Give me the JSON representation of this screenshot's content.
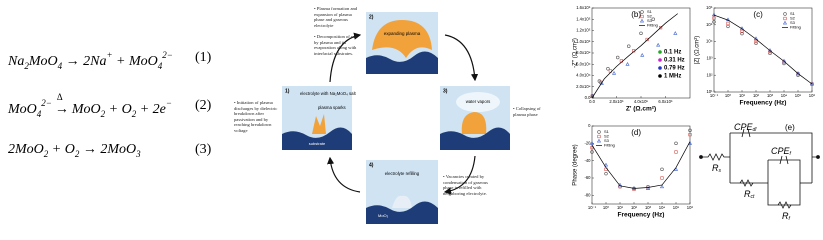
{
  "equations": [
    {
      "parts": [
        {
          "text": "Na",
          "pos": "base"
        },
        {
          "text": "2",
          "pos": "sub"
        },
        {
          "text": "MoO",
          "pos": "base"
        },
        {
          "text": "4",
          "pos": "sub"
        },
        {
          "text": " → 2Na",
          "pos": "base"
        },
        {
          "text": "+",
          "pos": "sup"
        },
        {
          "text": " + MoO",
          "pos": "base"
        },
        {
          "text": "4",
          "pos": "sub"
        },
        {
          "text": "2−",
          "pos": "sup"
        }
      ],
      "number": "(1)"
    },
    {
      "parts": [
        {
          "text": "MoO",
          "pos": "base"
        },
        {
          "text": "4",
          "pos": "sub"
        },
        {
          "text": "2−",
          "pos": "sup"
        },
        {
          "text": "→",
          "pos": "arrow",
          "above": "Δ"
        },
        {
          "text": "MoO",
          "pos": "base"
        },
        {
          "text": "2",
          "pos": "sub"
        },
        {
          "text": " + O",
          "pos": "base"
        },
        {
          "text": "2",
          "pos": "sub"
        },
        {
          "text": " + 2e",
          "pos": "base"
        },
        {
          "text": "−",
          "pos": "sup"
        }
      ],
      "number": "(2)"
    },
    {
      "parts": [
        {
          "text": "2MoO",
          "pos": "base"
        },
        {
          "text": "2",
          "pos": "sub"
        },
        {
          "text": " + O",
          "pos": "base"
        },
        {
          "text": "2",
          "pos": "sub"
        },
        {
          "text": " → 2MoO",
          "pos": "base"
        },
        {
          "text": "3",
          "pos": "sub"
        }
      ],
      "number": "(3)"
    }
  ],
  "diagram": {
    "panels": [
      {
        "number": "1)",
        "labels": [
          "electrolyte with Na₂MoO₄ salt",
          "plasma sparks",
          "substrate"
        ],
        "note": "Initiation of plasma discharges by dielectric breakdown after passivation and by reaching breakdown voltage"
      },
      {
        "number": "2)",
        "labels": [
          "expanding plasma"
        ],
        "note": "Plasma formation and expansion of plasma phase and gaseous electrolyte",
        "note2": "Decomposition of salt by plasma and its evaporation along with interfacial substrates."
      },
      {
        "number": "3)",
        "labels": [
          "water vapors"
        ],
        "note": "Collapsing of plasma phase"
      },
      {
        "number": "4)",
        "labels": [
          "electrolyte refilling",
          "MoO₃"
        ],
        "note": "Vacancies created by condensation of gaseous phase is refilled with neighboring electrolyte."
      }
    ]
  },
  "chart_data": [
    {
      "type": "scatter",
      "label": "(b)",
      "xlabel": "Z' (Ω.cm²)",
      "ylabel": "-Z'' (Ω.cm²)",
      "xlim": [
        0,
        800000
      ],
      "ylim": [
        0,
        160000
      ],
      "xticks": [
        {
          "value": 0,
          "label": "0.0"
        },
        {
          "value": 200000,
          "label": "2.0x10⁵"
        },
        {
          "value": 400000,
          "label": "4.0x10⁵"
        },
        {
          "value": 600000,
          "label": "6.0x10⁵"
        }
      ],
      "yticks": [
        {
          "value": 0,
          "label": "0.0"
        },
        {
          "value": 20000,
          "label": "2.0x10⁴"
        },
        {
          "value": 40000,
          "label": "4.0x10⁴"
        },
        {
          "value": 60000,
          "label": "6.0x10⁴"
        },
        {
          "value": 80000,
          "label": "8.0x10⁴"
        },
        {
          "value": 100000,
          "label": "1.0x10⁵"
        },
        {
          "value": 120000,
          "label": "1.2x10⁵"
        },
        {
          "value": 140000,
          "label": "1.4x10⁵"
        },
        {
          "value": 160000,
          "label": "1.6x10⁵"
        }
      ],
      "legend": "upper center",
      "series": [
        {
          "name": "S1",
          "color": "#555555",
          "mode": "markers",
          "marker": "circle",
          "x": [
            3000,
            60000,
            130000,
            210000,
            300000,
            400000,
            500000
          ],
          "values": [
            4000,
            30000,
            52000,
            72000,
            92000,
            115000,
            140000
          ]
        },
        {
          "name": "S2",
          "color": "#d9534f",
          "mode": "markers",
          "marker": "square",
          "x": [
            3000,
            70000,
            150000,
            240000,
            340000,
            450000,
            560000
          ],
          "values": [
            3500,
            28000,
            48000,
            66000,
            84000,
            104000,
            125000
          ]
        },
        {
          "name": "S3",
          "color": "#3a5fcd",
          "mode": "markers",
          "marker": "triangle",
          "x": [
            3000,
            80000,
            180000,
            290000,
            410000,
            540000,
            680000
          ],
          "values": [
            3000,
            26000,
            44000,
            60000,
            76000,
            94000,
            115000
          ]
        },
        {
          "name": "Fitting",
          "color": "#000000",
          "mode": "line",
          "x": [
            0,
            100000,
            200000,
            300000,
            400000,
            500000,
            600000,
            700000
          ],
          "values": [
            0,
            34000,
            56000,
            75000,
            93000,
            113000,
            133000,
            150000
          ]
        }
      ],
      "annotations": [
        {
          "text": "0.1 Hz",
          "color": "#22aa22"
        },
        {
          "text": "0.31 Hz",
          "color": "#cc22cc"
        },
        {
          "text": "0.79 Hz",
          "color": "#2233cc"
        },
        {
          "text": "1 MHz",
          "color": "#000000"
        }
      ]
    },
    {
      "type": "line",
      "label": "(c)",
      "xlabel": "Frequency (Hz)",
      "ylabel": "|Z| (Ω.cm²)",
      "log_x": true,
      "log_y": true,
      "x": [
        0.1,
        1,
        10,
        100,
        1000,
        10000,
        100000,
        1000000
      ],
      "xlim": [
        0.1,
        1000000
      ],
      "ylim": [
        10,
        1000000
      ],
      "xticks": [
        {
          "value": 0.1,
          "label": "10⁻¹"
        },
        {
          "value": 1,
          "label": "10⁰"
        },
        {
          "value": 10,
          "label": "10¹"
        },
        {
          "value": 100,
          "label": "10²"
        },
        {
          "value": 1000,
          "label": "10³"
        },
        {
          "value": 10000,
          "label": "10⁴"
        },
        {
          "value": 100000,
          "label": "10⁵"
        },
        {
          "value": 1000000,
          "label": "10⁶"
        }
      ],
      "yticks": [
        {
          "value": 10,
          "label": "10¹"
        },
        {
          "value": 100,
          "label": "10²"
        },
        {
          "value": 1000,
          "label": "10³"
        },
        {
          "value": 10000,
          "label": "10⁴"
        },
        {
          "value": 100000,
          "label": "10⁵"
        },
        {
          "value": 1000000,
          "label": "10⁶"
        }
      ],
      "legend": "upper right",
      "series": [
        {
          "name": "S1",
          "color": "#555555",
          "mode": "markers",
          "marker": "circle",
          "values": [
            150000,
            80000,
            30000,
            8000,
            2000,
            500,
            100,
            30
          ]
        },
        {
          "name": "S2",
          "color": "#d9534f",
          "mode": "markers",
          "marker": "square",
          "values": [
            250000,
            120000,
            40000,
            10000,
            2500,
            600,
            120,
            30
          ]
        },
        {
          "name": "S3",
          "color": "#3a5fcd",
          "mode": "markers",
          "marker": "triangle",
          "values": [
            400000,
            200000,
            60000,
            15000,
            3000,
            700,
            130,
            30
          ]
        },
        {
          "name": "Fitting",
          "color": "#000000",
          "mode": "line",
          "values": [
            380000,
            190000,
            58000,
            14000,
            2900,
            680,
            125,
            30
          ]
        }
      ]
    },
    {
      "type": "line",
      "label": "(d)",
      "xlabel": "Frequency (Hz)",
      "ylabel": "Phase (degree)",
      "log_x": true,
      "x": [
        0.1,
        1,
        10,
        100,
        1000,
        10000,
        100000,
        1000000
      ],
      "xlim": [
        0.1,
        1000000
      ],
      "ylim": [
        -90,
        0
      ],
      "xticks": [
        {
          "value": 0.1,
          "label": "10⁻¹"
        },
        {
          "value": 1,
          "label": "10⁰"
        },
        {
          "value": 10,
          "label": "10¹"
        },
        {
          "value": 100,
          "label": "10²"
        },
        {
          "value": 1000,
          "label": "10³"
        },
        {
          "value": 10000,
          "label": "10⁴"
        },
        {
          "value": 100000,
          "label": "10⁵"
        },
        {
          "value": 1000000,
          "label": "10⁶"
        }
      ],
      "yticks": [
        -80,
        -60,
        -40,
        -20,
        0
      ],
      "legend": "upper left",
      "series": [
        {
          "name": "S1",
          "color": "#555555",
          "mode": "markers",
          "marker": "circle",
          "values": [
            -30,
            -55,
            -70,
            -72,
            -70,
            -50,
            -20,
            -5
          ]
        },
        {
          "name": "S2",
          "color": "#d9534f",
          "mode": "markers",
          "marker": "square",
          "values": [
            -25,
            -50,
            -70,
            -73,
            -72,
            -60,
            -30,
            -10
          ]
        },
        {
          "name": "S3",
          "color": "#3a5fcd",
          "mode": "markers",
          "marker": "triangle",
          "values": [
            -20,
            -45,
            -68,
            -72,
            -72,
            -70,
            -50,
            -20
          ]
        },
        {
          "name": "Fitting",
          "color": "#000000",
          "mode": "line",
          "values": [
            -22,
            -48,
            -69,
            -72,
            -71,
            -68,
            -48,
            -18
          ]
        }
      ]
    }
  ],
  "circuit": {
    "label": "(e)",
    "elements": [
      {
        "base": "R",
        "sub": "s"
      },
      {
        "base": "CPE",
        "sub": "dl"
      },
      {
        "base": "CPE",
        "sub": "f"
      },
      {
        "base": "R",
        "sub": "ct"
      },
      {
        "base": "R",
        "sub": "f"
      }
    ]
  }
}
